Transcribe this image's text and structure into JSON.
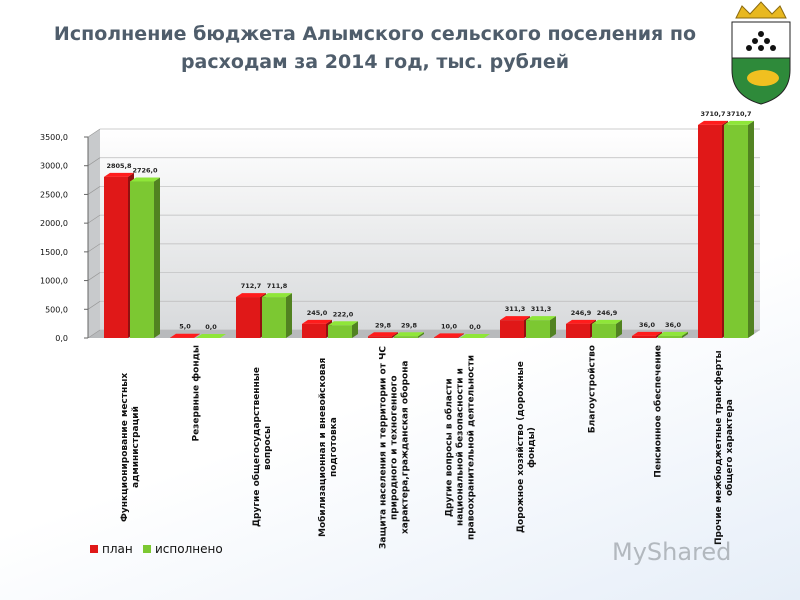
{
  "chart_data": {
    "type": "bar3d",
    "title": "Исполнение бюджета Алымского сельского поселения по расходам за 2014 год,  тыс. рублей",
    "categories": [
      "Функционирование местных администраций",
      "Резервные фонды",
      "Другие общегосударственные вопросы",
      "Мобилизационная и вневойсковая подготовка",
      "Защита населения и территории от ЧС природного и техногенного характера,гражданская оборона",
      "Другие вопросы в области национальной безопасности и правоохранительной деятельности",
      "Дорожное хозяйство (дорожные фонды)",
      "Благоустройство",
      "Пенсионное обеспечение",
      "Прочие межбюджетные трансферты общего характера"
    ],
    "series": [
      {
        "name": "план",
        "color": "#e01818",
        "values": [
          2805.8,
          5,
          712.7,
          245,
          29.8,
          10,
          311.3,
          246.9,
          36,
          3710.7
        ],
        "value_labels": [
          "2805,8",
          "5,0",
          "712,7",
          "245,0",
          "29,8",
          "10,0",
          "311,3",
          "246,9",
          "36,0",
          "3710,7"
        ]
      },
      {
        "name": "исполнено",
        "color": "#7cc832",
        "values": [
          2726,
          0,
          711.8,
          222,
          29.8,
          0,
          311.3,
          246.9,
          36,
          3710.7
        ],
        "value_labels": [
          "2726,0",
          "0,0",
          "711,8",
          "222,0",
          "29,8",
          "0,0",
          "311,3",
          "246,9",
          "36,0",
          "3710,7"
        ]
      }
    ],
    "ylim": [
      0,
      3500
    ],
    "yticks": [
      {
        "value": 0,
        "label": "0,0"
      },
      {
        "value": 500,
        "label": "500,0"
      },
      {
        "value": 1000,
        "label": "1000,0"
      },
      {
        "value": 1500,
        "label": "1500,0"
      },
      {
        "value": 2000,
        "label": "2000,0"
      },
      {
        "value": 2500,
        "label": "2500,0"
      },
      {
        "value": 3000,
        "label": "3000,0"
      },
      {
        "value": 3500,
        "label": "3500,0"
      }
    ],
    "grid": true,
    "legend": "bottom-left",
    "watermark": "MyShared"
  }
}
